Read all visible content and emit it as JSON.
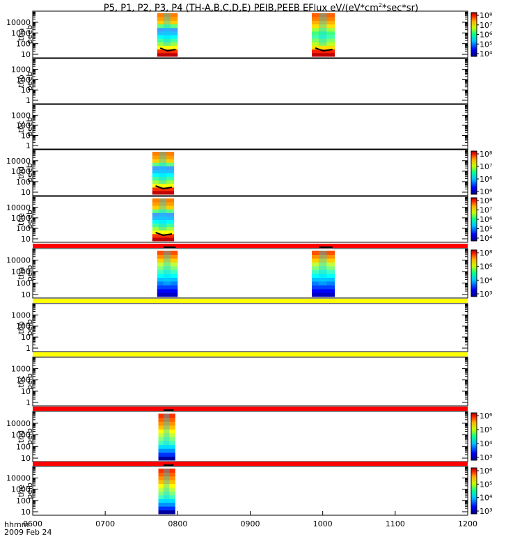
{
  "title": {
    "prefix": "P5, P1, P2, P3, P4 (TH-A,B,C,D,E) PEIB,PEEB EFlux eV/(eV*cm",
    "sup": "2",
    "suffix": "*sec*sr)"
  },
  "footer": {
    "time_label": "hhmm",
    "date_label": "2009 Feb 24"
  },
  "chart_data": {
    "type": "heatmap",
    "title": "P5, P1, P2, P3, P4 (TH-A,B,C,D,E) PEIB,PEEB EFlux eV/(eV*cm^2*sec*sr)",
    "x_ticks": [
      "0600",
      "0700",
      "0800",
      "0900",
      "1000",
      "1100",
      "1200"
    ],
    "xlim": [
      "0600",
      "1200"
    ],
    "panels": [
      {
        "label1": "tha",
        "label2": "peeb",
        "y_ticks": [
          "10",
          "100",
          "1000",
          "10000"
        ],
        "log_y": true,
        "colorbar": [
          "10⁴",
          "10⁵",
          "10⁶",
          "10⁷",
          "10⁸"
        ],
        "top_bar": "",
        "blocks": [
          {
            "start": "0743",
            "end": "0800",
            "profile": "e"
          },
          {
            "start": "0951",
            "end": "1010",
            "profile": "e2"
          }
        ]
      },
      {
        "label1": "thb",
        "label2": "peeb",
        "y_ticks": [
          "1",
          "10",
          "100",
          "1000"
        ],
        "log_y": true,
        "colorbar": [],
        "top_bar": "",
        "blocks": []
      },
      {
        "label1": "thc",
        "label2": "peeb",
        "y_ticks": [
          "1",
          "10",
          "100",
          "1000"
        ],
        "log_y": true,
        "colorbar": [],
        "top_bar": "",
        "blocks": []
      },
      {
        "label1": "thd",
        "label2": "peeb",
        "y_ticks": [
          "10",
          "100",
          "1000",
          "10000"
        ],
        "log_y": true,
        "colorbar": [
          "10⁶",
          "10⁶",
          "10⁷",
          "10⁸"
        ],
        "top_bar": "",
        "blocks": [
          {
            "start": "0739",
            "end": "0757",
            "profile": "e"
          }
        ]
      },
      {
        "label1": "the",
        "label2": "peeb",
        "y_ticks": [
          "10",
          "100",
          "1000",
          "10000"
        ],
        "log_y": true,
        "colorbar": [
          "10⁴",
          "10⁵",
          "10⁶",
          "10⁷",
          "10⁸"
        ],
        "top_bar": "",
        "blocks": [
          {
            "start": "0739",
            "end": "0757",
            "profile": "e"
          }
        ]
      },
      {
        "label1": "tha",
        "label2": "peib",
        "y_ticks": [
          "10",
          "100",
          "1000",
          "10000"
        ],
        "log_y": true,
        "colorbar": [
          "10³",
          "10⁴",
          "10⁶",
          "10⁸"
        ],
        "top_bar": "#ff0000",
        "blocks": [
          {
            "start": "0743",
            "end": "0800",
            "profile": "i"
          },
          {
            "start": "0951",
            "end": "1010",
            "profile": "i"
          }
        ]
      },
      {
        "label1": "thb",
        "label2": "peib",
        "y_ticks": [
          "1",
          "10",
          "100",
          "1000"
        ],
        "log_y": true,
        "colorbar": [],
        "top_bar": "#ffff00",
        "blocks": []
      },
      {
        "label1": "thc",
        "label2": "peib",
        "y_ticks": [
          "1",
          "10",
          "100",
          "1000"
        ],
        "log_y": true,
        "colorbar": [],
        "top_bar": "#ffff00",
        "blocks": []
      },
      {
        "label1": "thd",
        "label2": "peib",
        "y_ticks": [
          "10",
          "100",
          "1000",
          "10000"
        ],
        "log_y": true,
        "colorbar": [
          "10³",
          "10⁴",
          "10⁵",
          "10⁶"
        ],
        "top_bar": "#ff0000",
        "blocks": [
          {
            "start": "0744",
            "end": "0758",
            "profile": "i2"
          }
        ]
      },
      {
        "label1": "the",
        "label2": "peib",
        "y_ticks": [
          "10",
          "100",
          "1000",
          "10000"
        ],
        "log_y": true,
        "colorbar": [
          "10³",
          "10⁴",
          "10⁵",
          "10⁶"
        ],
        "top_bar": "#ff0000",
        "blocks": [
          {
            "start": "0744",
            "end": "0758",
            "profile": "i2"
          }
        ]
      }
    ]
  }
}
